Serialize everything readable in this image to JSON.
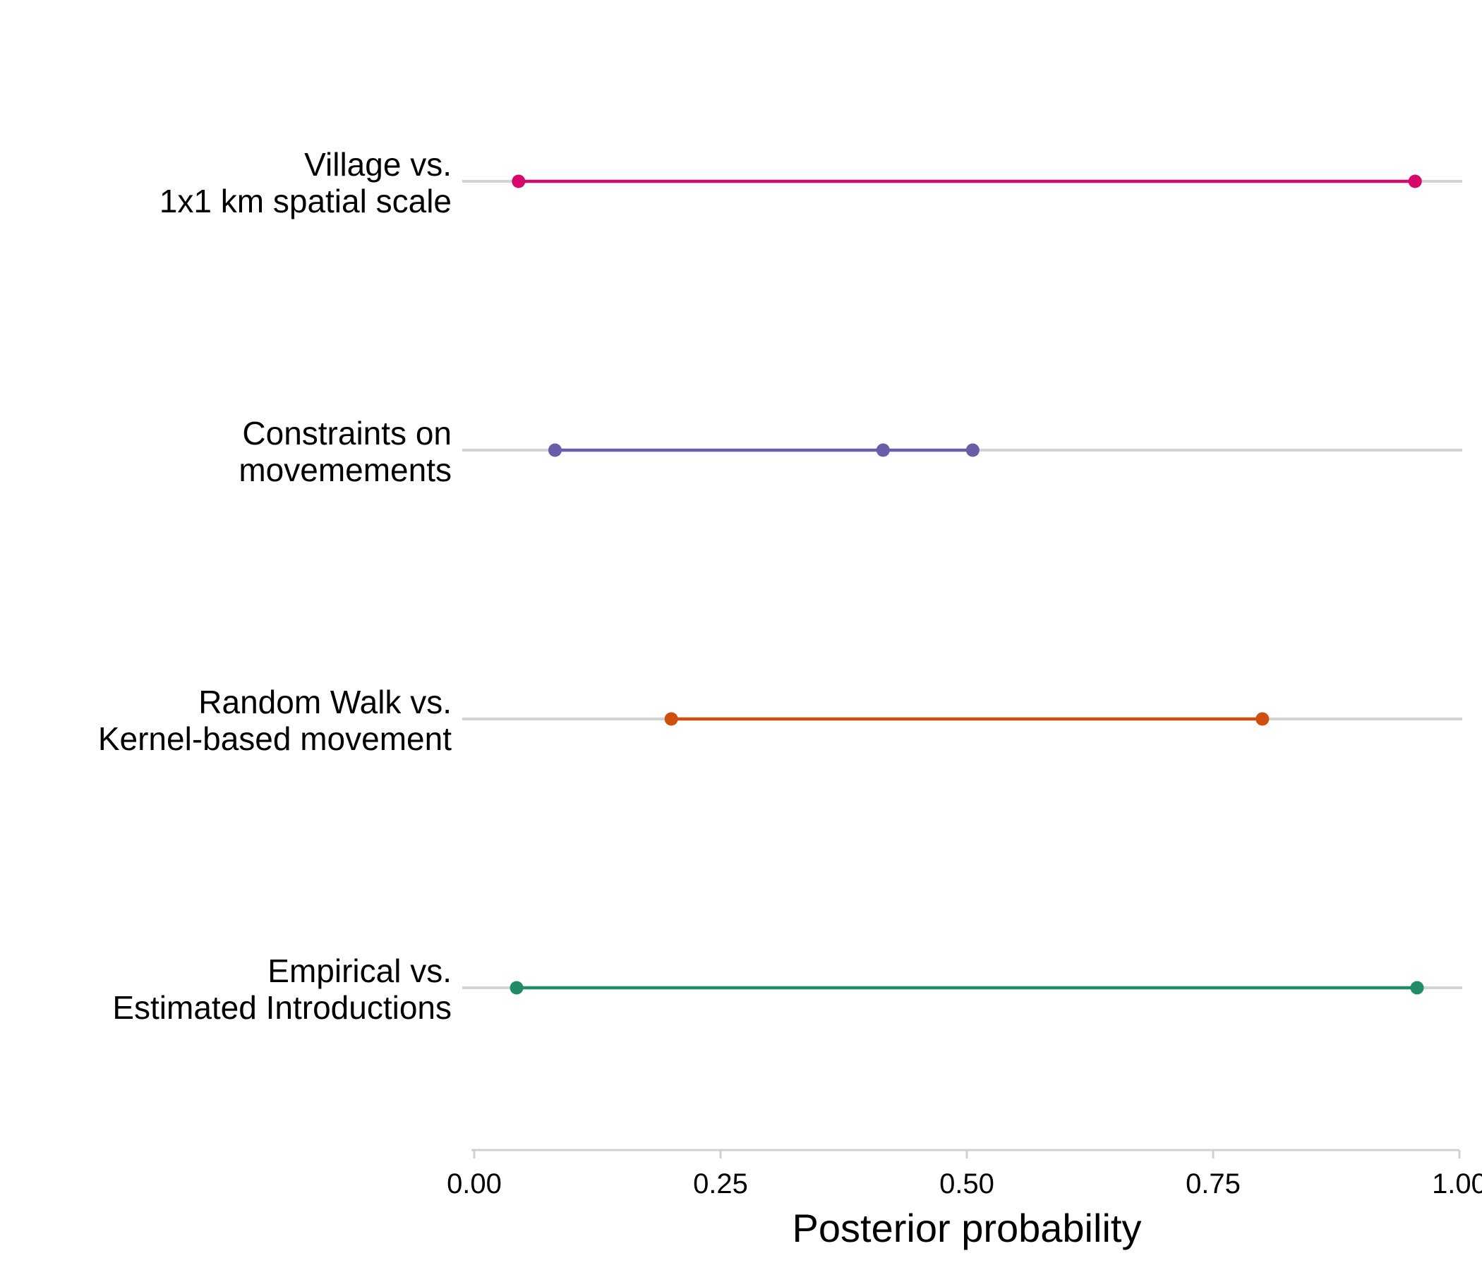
{
  "chart_data": {
    "type": "dot-range",
    "xlabel": "Posterior probability",
    "xlim": [
      0,
      1
    ],
    "xticks": [
      0,
      0.25,
      0.5,
      0.75,
      1
    ],
    "xtick_labels": [
      "0.00",
      "0.25",
      "0.50",
      "0.75",
      "1.00"
    ],
    "grid": "horizontal reference line per category",
    "categories": [
      {
        "label_lines": [
          "Village vs.",
          "1x1 km spatial scale"
        ],
        "color": "#d6086a",
        "values": [
          0.045,
          0.955
        ]
      },
      {
        "label_lines": [
          "Constraints on",
          "movemements"
        ],
        "color": "#6a5ca6",
        "values": [
          0.082,
          0.415,
          0.506
        ]
      },
      {
        "label_lines": [
          "Random Walk vs.",
          "Kernel-based movement"
        ],
        "color": "#cf4f0e",
        "values": [
          0.2,
          0.8
        ]
      },
      {
        "label_lines": [
          "Empirical vs.",
          "Estimated Introductions"
        ],
        "color": "#218a66",
        "values": [
          0.043,
          0.957
        ]
      }
    ]
  }
}
